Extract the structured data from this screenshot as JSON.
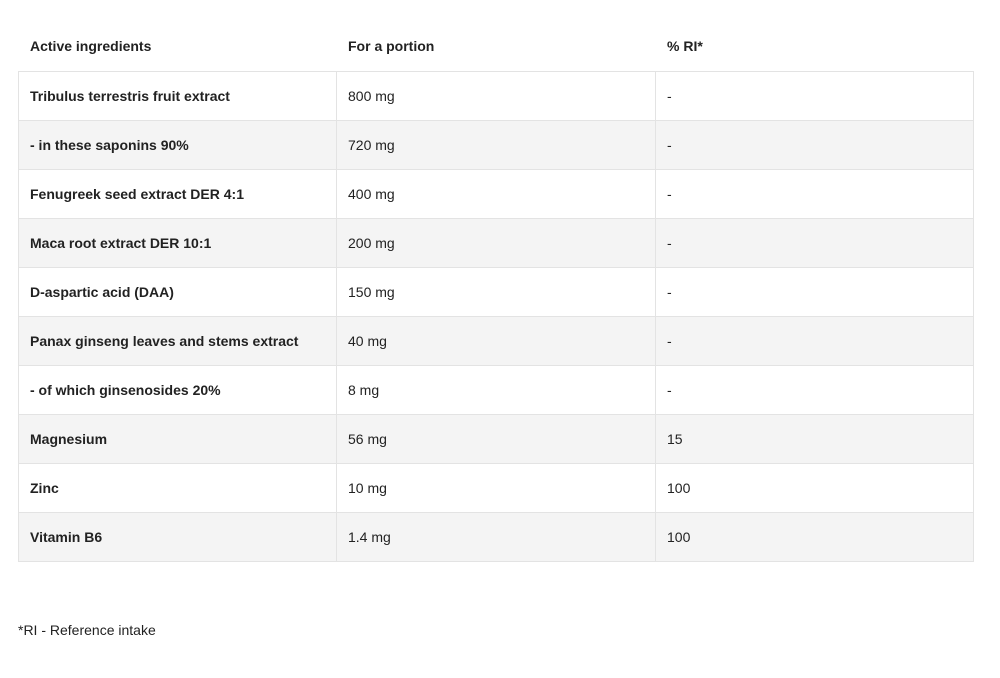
{
  "headers": [
    "Active ingredients",
    "For a portion",
    "% RI*"
  ],
  "rows": [
    {
      "name": "Tribulus terrestris fruit extract",
      "portion": "800 mg",
      "ri": "-"
    },
    {
      "name": "- in these saponins 90%",
      "portion": "720 mg",
      "ri": "-"
    },
    {
      "name": "Fenugreek seed extract DER 4:1",
      "portion": "400 mg",
      "ri": "-"
    },
    {
      "name": "Maca root extract DER 10:1",
      "portion": "200 mg",
      "ri": "-"
    },
    {
      "name": "D-aspartic acid (DAA)",
      "portion": "150 mg",
      "ri": "-"
    },
    {
      "name": "Panax ginseng leaves and stems extract",
      "portion": "40 mg",
      "ri": "-"
    },
    {
      "name": "- of which ginsenosides 20%",
      "portion": "8 mg",
      "ri": "-"
    },
    {
      "name": "Magnesium",
      "portion": "56 mg",
      "ri": "15"
    },
    {
      "name": "Zinc",
      "portion": "10 mg",
      "ri": "100"
    },
    {
      "name": "Vitamin B6",
      "portion": "1.4 mg",
      "ri": "100"
    }
  ],
  "footnote": "*RI - Reference intake"
}
